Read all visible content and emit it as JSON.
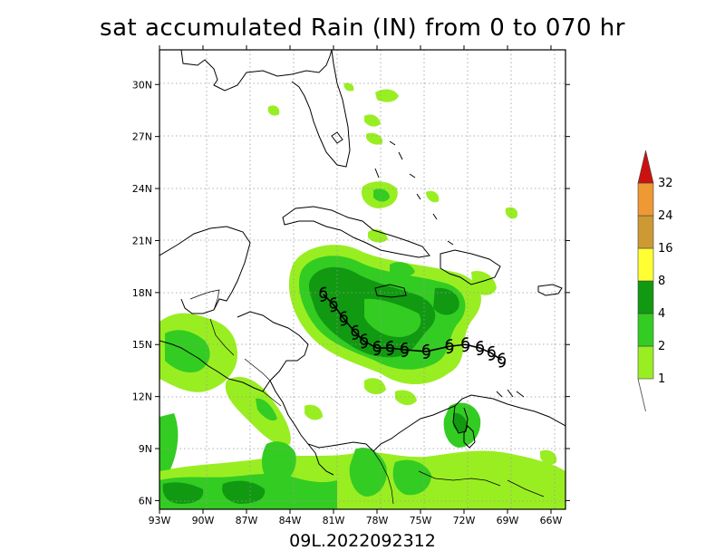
{
  "title": "sat accumulated Rain (IN) from 0 to 070 hr",
  "subtitle": "09L.2022092312",
  "map": {
    "lon_range": [
      -93,
      -65
    ],
    "lat_range": [
      5.5,
      32
    ],
    "lon_ticks": [
      "93W",
      "90W",
      "87W",
      "84W",
      "81W",
      "78W",
      "75W",
      "72W",
      "69W",
      "66W"
    ],
    "lat_ticks": [
      "6N",
      "9N",
      "12N",
      "15N",
      "18N",
      "21N",
      "24N",
      "27N",
      "30N"
    ]
  },
  "colorbar": {
    "levels": [
      "1",
      "2",
      "4",
      "8",
      "16",
      "24",
      "32"
    ],
    "colors": [
      "#99ee22",
      "#33cc22",
      "#119911",
      "#ffff33",
      "#cc9933",
      "#ee9933",
      "#cc1111"
    ]
  },
  "storm": {
    "symbol": "tropical-cyclone",
    "track": [
      {
        "lon": -81.7,
        "lat": 17.9
      },
      {
        "lon": -81.0,
        "lat": 17.3
      },
      {
        "lon": -80.3,
        "lat": 16.5
      },
      {
        "lon": -79.5,
        "lat": 15.7
      },
      {
        "lon": -78.9,
        "lat": 15.2
      },
      {
        "lon": -78.0,
        "lat": 14.8
      },
      {
        "lon": -77.1,
        "lat": 14.8
      },
      {
        "lon": -76.1,
        "lat": 14.7
      },
      {
        "lon": -74.6,
        "lat": 14.6
      },
      {
        "lon": -73.0,
        "lat": 14.9
      },
      {
        "lon": -71.9,
        "lat": 15.0
      },
      {
        "lon": -70.9,
        "lat": 14.8
      },
      {
        "lon": -70.1,
        "lat": 14.5
      },
      {
        "lon": -69.4,
        "lat": 14.1
      }
    ]
  }
}
